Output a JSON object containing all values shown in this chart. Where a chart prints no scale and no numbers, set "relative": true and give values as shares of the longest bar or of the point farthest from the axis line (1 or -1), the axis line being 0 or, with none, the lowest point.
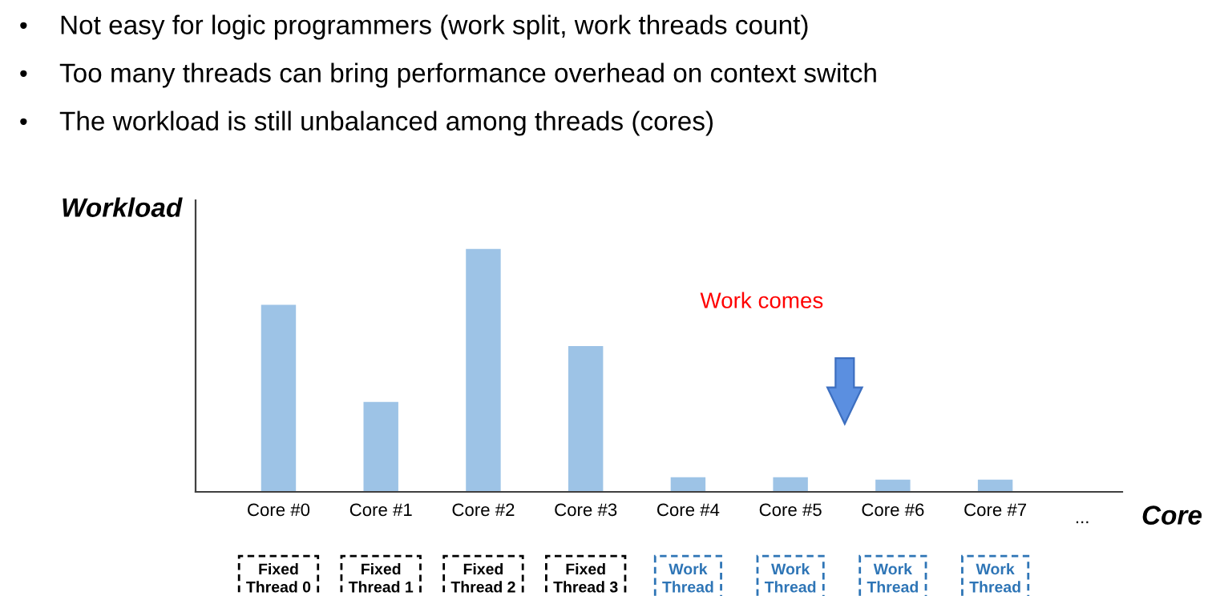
{
  "chart_data": {
    "type": "bar",
    "relative": true,
    "ylabel": "Workload",
    "xlabel": "Core",
    "categories": [
      "Core #0",
      "Core #1",
      "Core #2",
      "Core #3",
      "Core #4",
      "Core #5",
      "Core #6",
      "Core #7"
    ],
    "values": [
      0.77,
      0.37,
      1,
      0.6,
      0.06,
      0.06,
      0.05,
      0.05
    ],
    "color": "#9dc3e6",
    "grid": false,
    "legend": false,
    "annotations": [
      "•",
      "•",
      "•",
      "Not easy for logic programmers (work split, work threads count)",
      "Too many threads can bring performance overhead on context switch",
      "The workload is still unbalanced among threads (cores)",
      "Work comes",
      "...",
      "Fixed\nThread 0",
      "Fixed\nThread 1",
      "Fixed\nThread 2",
      "Fixed\nThread 3",
      "Work\nThread",
      "Work\nThread",
      "Work\nThread",
      "Work\nThread"
    ]
  }
}
